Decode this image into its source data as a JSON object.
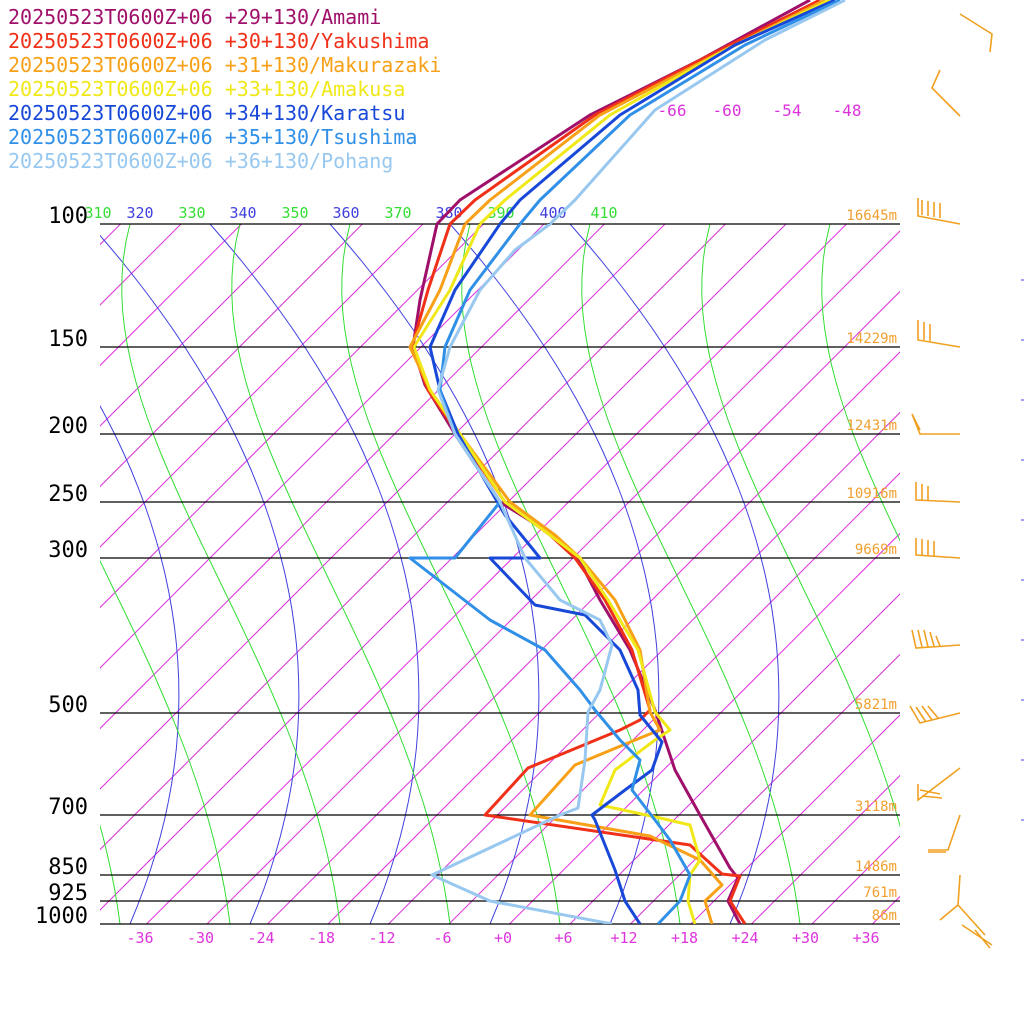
{
  "chart_data": {
    "type": "line",
    "title": "",
    "legend_position": "top-left",
    "x_ticks": [
      "-36",
      "-30",
      "-24",
      "-18",
      "-12",
      "-6",
      "+0",
      "+6",
      "+12",
      "+18",
      "+24",
      "+30",
      "+36"
    ],
    "pressure_levels": [
      {
        "p": 100,
        "label": "100",
        "height": "16645m"
      },
      {
        "p": 150,
        "label": "150",
        "height": "14229m"
      },
      {
        "p": 200,
        "label": "200",
        "height": "12431m"
      },
      {
        "p": 250,
        "label": "250",
        "height": "10916m"
      },
      {
        "p": 300,
        "label": "300",
        "height": "9669m"
      },
      {
        "p": 500,
        "label": "500",
        "height": "5821m"
      },
      {
        "p": 700,
        "label": "700",
        "height": "3118m"
      },
      {
        "p": 850,
        "label": "850",
        "height": "1486m"
      },
      {
        "p": 925,
        "label": "925",
        "height": "761m"
      },
      {
        "p": 1000,
        "label": "1000",
        "height": "86m"
      }
    ],
    "theta_labels": [
      "310",
      "320",
      "330",
      "340",
      "350",
      "360",
      "370",
      "380",
      "390",
      "400",
      "410"
    ],
    "mixing_labels": [
      "-66",
      "-60",
      "-54",
      "-48"
    ],
    "series": [
      {
        "name": "20250523T0600Z+06 +29+130/Amami",
        "color": "#a0106a"
      },
      {
        "name": "20250523T0600Z+06 +30+130/Yakushima",
        "color": "#f03018"
      },
      {
        "name": "20250523T0600Z+06 +31+130/Makurazaki",
        "color": "#f8a018"
      },
      {
        "name": "20250523T0600Z+06 +33+130/Amakusa",
        "color": "#f0e818"
      },
      {
        "name": "20250523T0600Z+06 +34+130/Karatsu",
        "color": "#1848d8"
      },
      {
        "name": "20250523T0600Z+06 +35+130/Tsushima",
        "color": "#3090e8"
      },
      {
        "name": "20250523T0600Z+06 +36+130/Pohang",
        "color": "#98c8f0"
      }
    ],
    "colors": {
      "isotherm": "#dd33dd",
      "dry_adiabat": "#4040dd",
      "moist_adiabat": "#33dd33",
      "height_label": "#f0a030",
      "wind_barb": "#f0a020"
    }
  }
}
